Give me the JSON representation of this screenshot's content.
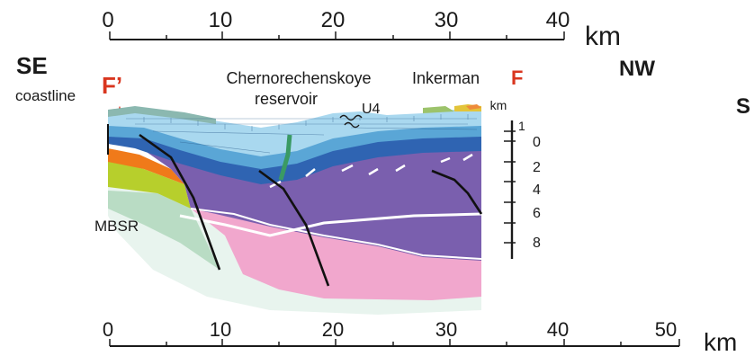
{
  "top_scale": {
    "ticks": [
      "0",
      "10",
      "20",
      "30",
      "40"
    ],
    "unit": "km"
  },
  "bottom_scale": {
    "ticks": [
      "0",
      "10",
      "20",
      "30",
      "40",
      "50"
    ],
    "unit": "km"
  },
  "labels": {
    "se": "SE",
    "coastline": "coastline",
    "f_prime": "F’",
    "chernorechenskoye_line1": "Chernorechenskoye",
    "chernorechenskoye_line2": "reservoir",
    "inkerman": "Inkerman",
    "f": "F",
    "nw": "NW",
    "u4": "U4",
    "mbsr": "MBSR",
    "edge_s": "S"
  },
  "depth_scale": {
    "unit": "km",
    "ticks": [
      "1",
      "0",
      "2",
      "4",
      "6",
      "8"
    ]
  },
  "colors": {
    "section_label_red": "#d9361f",
    "limestone_light_blue": "#a9d8ef",
    "limestone_mid_blue": "#5aa6d6",
    "deep_blue": "#2f64b2",
    "purple": "#7a5fae",
    "pink": "#f1a7cd",
    "green_unit": "#3a9a64",
    "orange": "#f07a1a",
    "lime": "#b7cf2c",
    "mbsr_green": "#b9dcc4"
  }
}
